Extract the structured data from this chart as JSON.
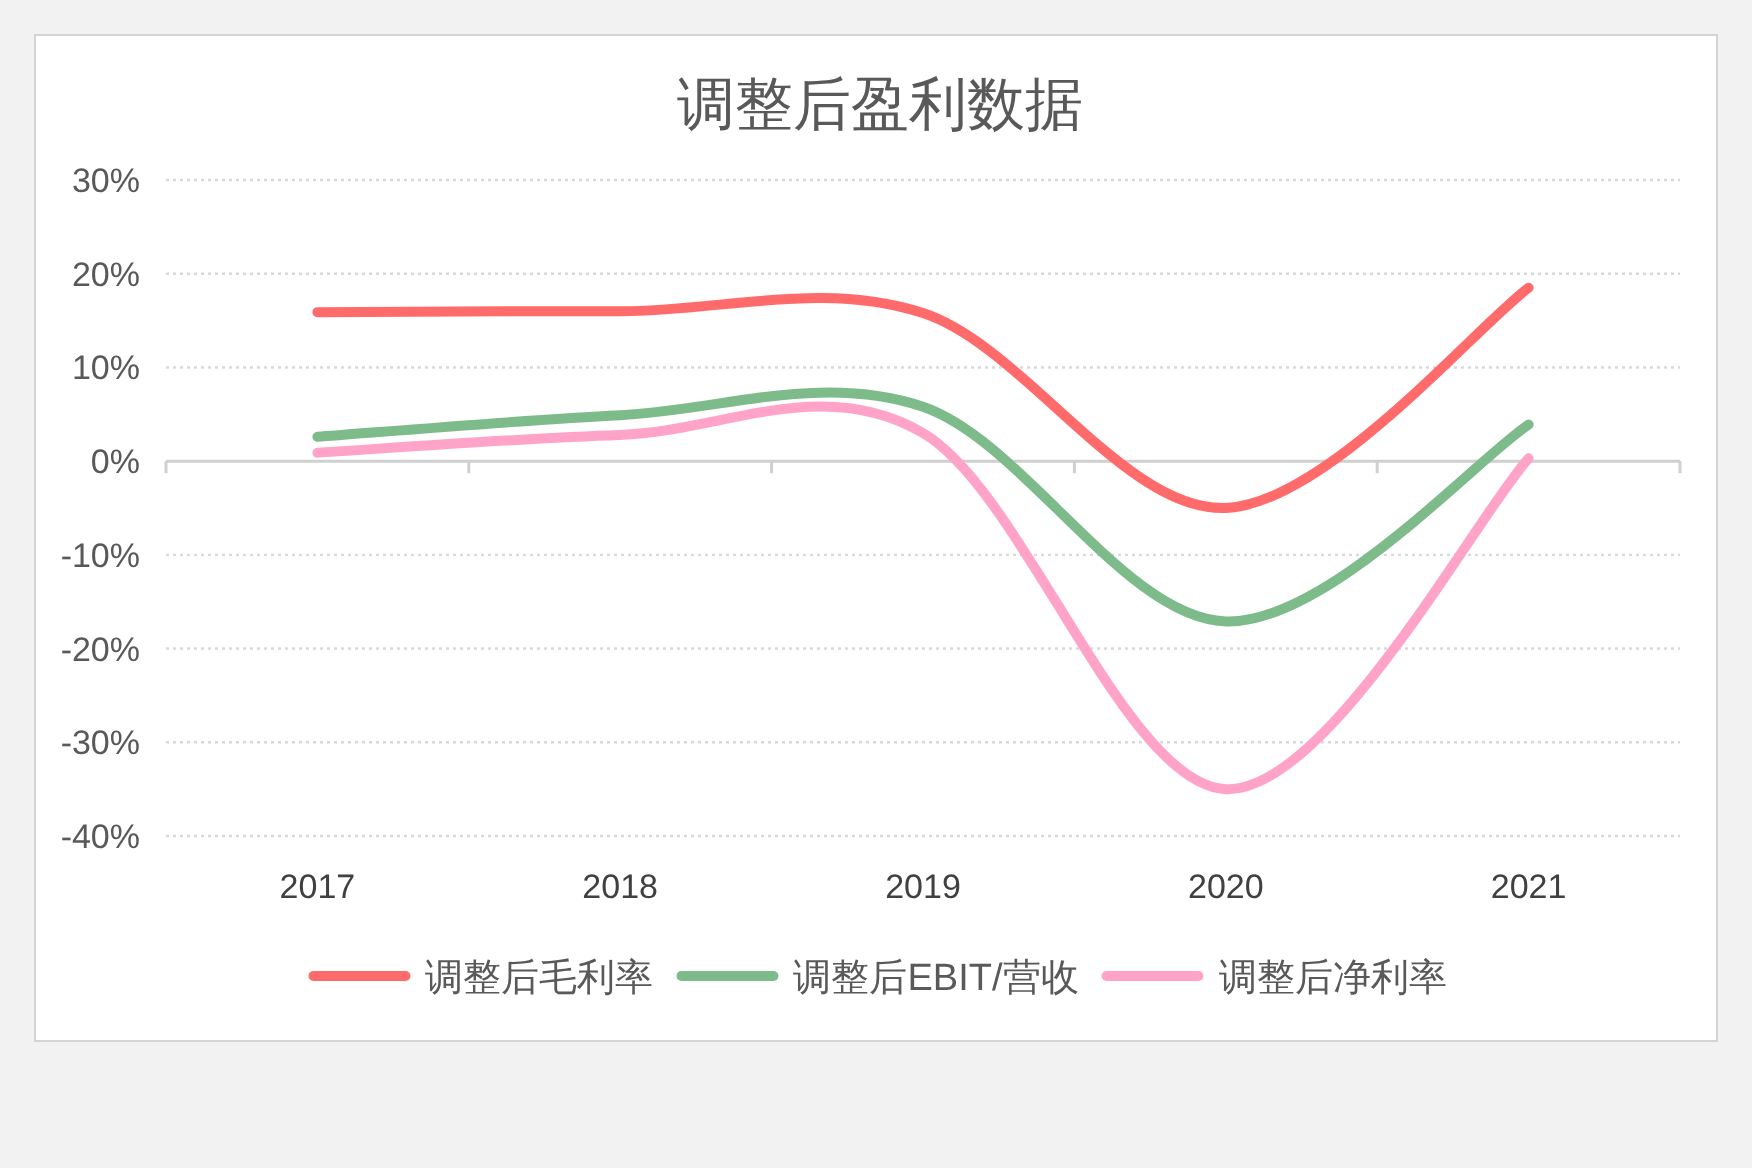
{
  "chart_data": {
    "type": "line",
    "title": "调整后盈利数据",
    "categories": [
      "2017",
      "2018",
      "2019",
      "2020",
      "2021"
    ],
    "series": [
      {
        "name": "调整后毛利率",
        "color": "#ff6b6b",
        "values": [
          15.9,
          16.0,
          15.8,
          -5.0,
          18.5
        ]
      },
      {
        "name": "调整后EBIT/营收",
        "color": "#7dbb8b",
        "values": [
          2.6,
          4.9,
          5.8,
          -17.1,
          3.9
        ]
      },
      {
        "name": "调整后净利率",
        "color": "#ffa4c8",
        "values": [
          0.9,
          2.8,
          3.0,
          -35.0,
          0.3
        ]
      }
    ],
    "ylim": [
      -40,
      30
    ],
    "yticks": [
      {
        "value": -40,
        "label": "-40%"
      },
      {
        "value": -30,
        "label": "-30%"
      },
      {
        "value": -20,
        "label": "-20%"
      },
      {
        "value": -10,
        "label": "-10%"
      },
      {
        "value": 0,
        "label": "0%"
      },
      {
        "value": 10,
        "label": "10%"
      },
      {
        "value": 20,
        "label": "20%"
      },
      {
        "value": 30,
        "label": "30%"
      }
    ],
    "grid": "y",
    "legend": "bottom",
    "line_style": "solid"
  }
}
